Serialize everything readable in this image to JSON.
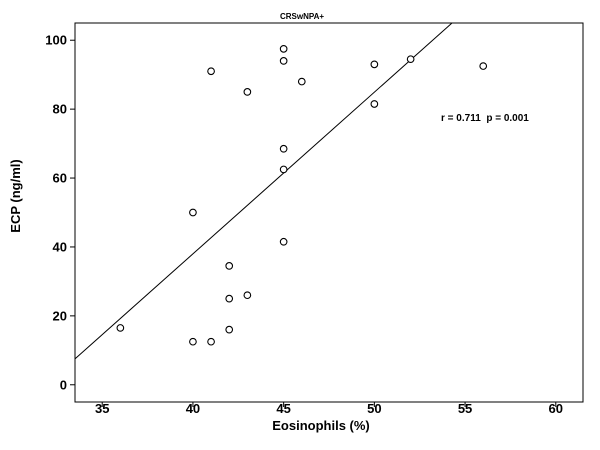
{
  "chart_data": {
    "type": "scatter",
    "title": "CRSwNPA+",
    "xlabel": "Eosinophils (%)",
    "ylabel": "ECP (ng/ml)",
    "xlim": [
      33.5,
      61.5
    ],
    "ylim": [
      -5,
      105
    ],
    "x_ticks": [
      35,
      40,
      45,
      50,
      55,
      60
    ],
    "y_ticks": [
      0,
      20,
      40,
      60,
      80,
      100
    ],
    "grid": false,
    "annotation": "r = 0.711  p = 0.001",
    "points": [
      {
        "x": 36,
        "y": 16.5
      },
      {
        "x": 40,
        "y": 12.5
      },
      {
        "x": 40,
        "y": 50
      },
      {
        "x": 41,
        "y": 12.5
      },
      {
        "x": 41,
        "y": 91
      },
      {
        "x": 42,
        "y": 16
      },
      {
        "x": 42,
        "y": 25
      },
      {
        "x": 42,
        "y": 34.5
      },
      {
        "x": 43,
        "y": 26
      },
      {
        "x": 43,
        "y": 85
      },
      {
        "x": 45,
        "y": 41.5
      },
      {
        "x": 45,
        "y": 62.5
      },
      {
        "x": 45,
        "y": 68.5
      },
      {
        "x": 45,
        "y": 94
      },
      {
        "x": 45,
        "y": 97.5
      },
      {
        "x": 46,
        "y": 88
      },
      {
        "x": 50,
        "y": 81.5
      },
      {
        "x": 50,
        "y": 93
      },
      {
        "x": 52,
        "y": 94.5
      },
      {
        "x": 56,
        "y": 92.5
      }
    ],
    "fit_line": {
      "x": [
        33.5,
        54.28
      ],
      "y": [
        7.5,
        105
      ]
    },
    "colors": {
      "background": "#ffffff",
      "frame": "#000000",
      "marker_stroke": "#000000",
      "line": "#000000"
    }
  }
}
